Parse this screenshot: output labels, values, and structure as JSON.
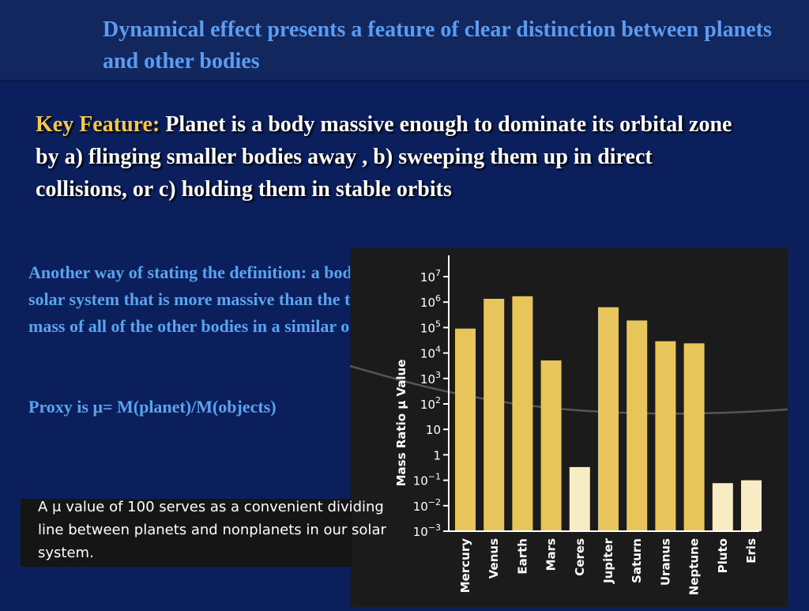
{
  "slide": {
    "title": "Dynamical effect presents a feature of clear distinction between planets and other bodies",
    "key_label": "Key Feature:",
    "key_text": "Planet is a body massive enough to dominate its orbital zone by a) flinging smaller bodies away , b) sweeping them up in direct collisions, or c) holding them in stable orbits",
    "alt_text": "Another way of stating the definition: a body in the solar system that is more massive than the total mass of all of the other bodies in a similar orbit.",
    "proxy_text": "Proxy is μ= M(planet)/M(objects)",
    "caption_text": "A μ value of 100 serves as a convenient dividing line between planets and nonplanets in our solar system."
  },
  "chart_data": {
    "type": "bar",
    "ylabel": "Mass Ratio μ Value",
    "yscale": "log",
    "ylim": [
      0.001,
      10000000
    ],
    "yticks": [
      {
        "value": 10000000,
        "base": "10",
        "exp": "7"
      },
      {
        "value": 1000000,
        "base": "10",
        "exp": "6"
      },
      {
        "value": 100000,
        "base": "10",
        "exp": "5"
      },
      {
        "value": 10000,
        "base": "10",
        "exp": "4"
      },
      {
        "value": 1000,
        "base": "10",
        "exp": "3"
      },
      {
        "value": 100,
        "base": "10",
        "exp": "2"
      },
      {
        "value": 10,
        "base": "10",
        "exp": ""
      },
      {
        "value": 1,
        "base": "1",
        "exp": ""
      },
      {
        "value": 0.1,
        "base": "10",
        "exp": "−1"
      },
      {
        "value": 0.01,
        "base": "10",
        "exp": "−2"
      },
      {
        "value": 0.001,
        "base": "10",
        "exp": "−3"
      }
    ],
    "categories": [
      "Mercury",
      "Venus",
      "Earth",
      "Mars",
      "Ceres",
      "Jupiter",
      "Saturn",
      "Uranus",
      "Neptune",
      "Pluto",
      "Eris"
    ],
    "values": [
      91000,
      1350000,
      1700000,
      5100,
      0.33,
      630000,
      190000,
      29000,
      24000,
      0.077,
      0.1
    ],
    "bar_colors": [
      "#e8c55a",
      "#e8c55a",
      "#e8c55a",
      "#e8c55a",
      "#f7ecc4",
      "#e8c55a",
      "#e8c55a",
      "#e8c55a",
      "#e8c55a",
      "#f7ecc4",
      "#f7ecc4"
    ]
  }
}
